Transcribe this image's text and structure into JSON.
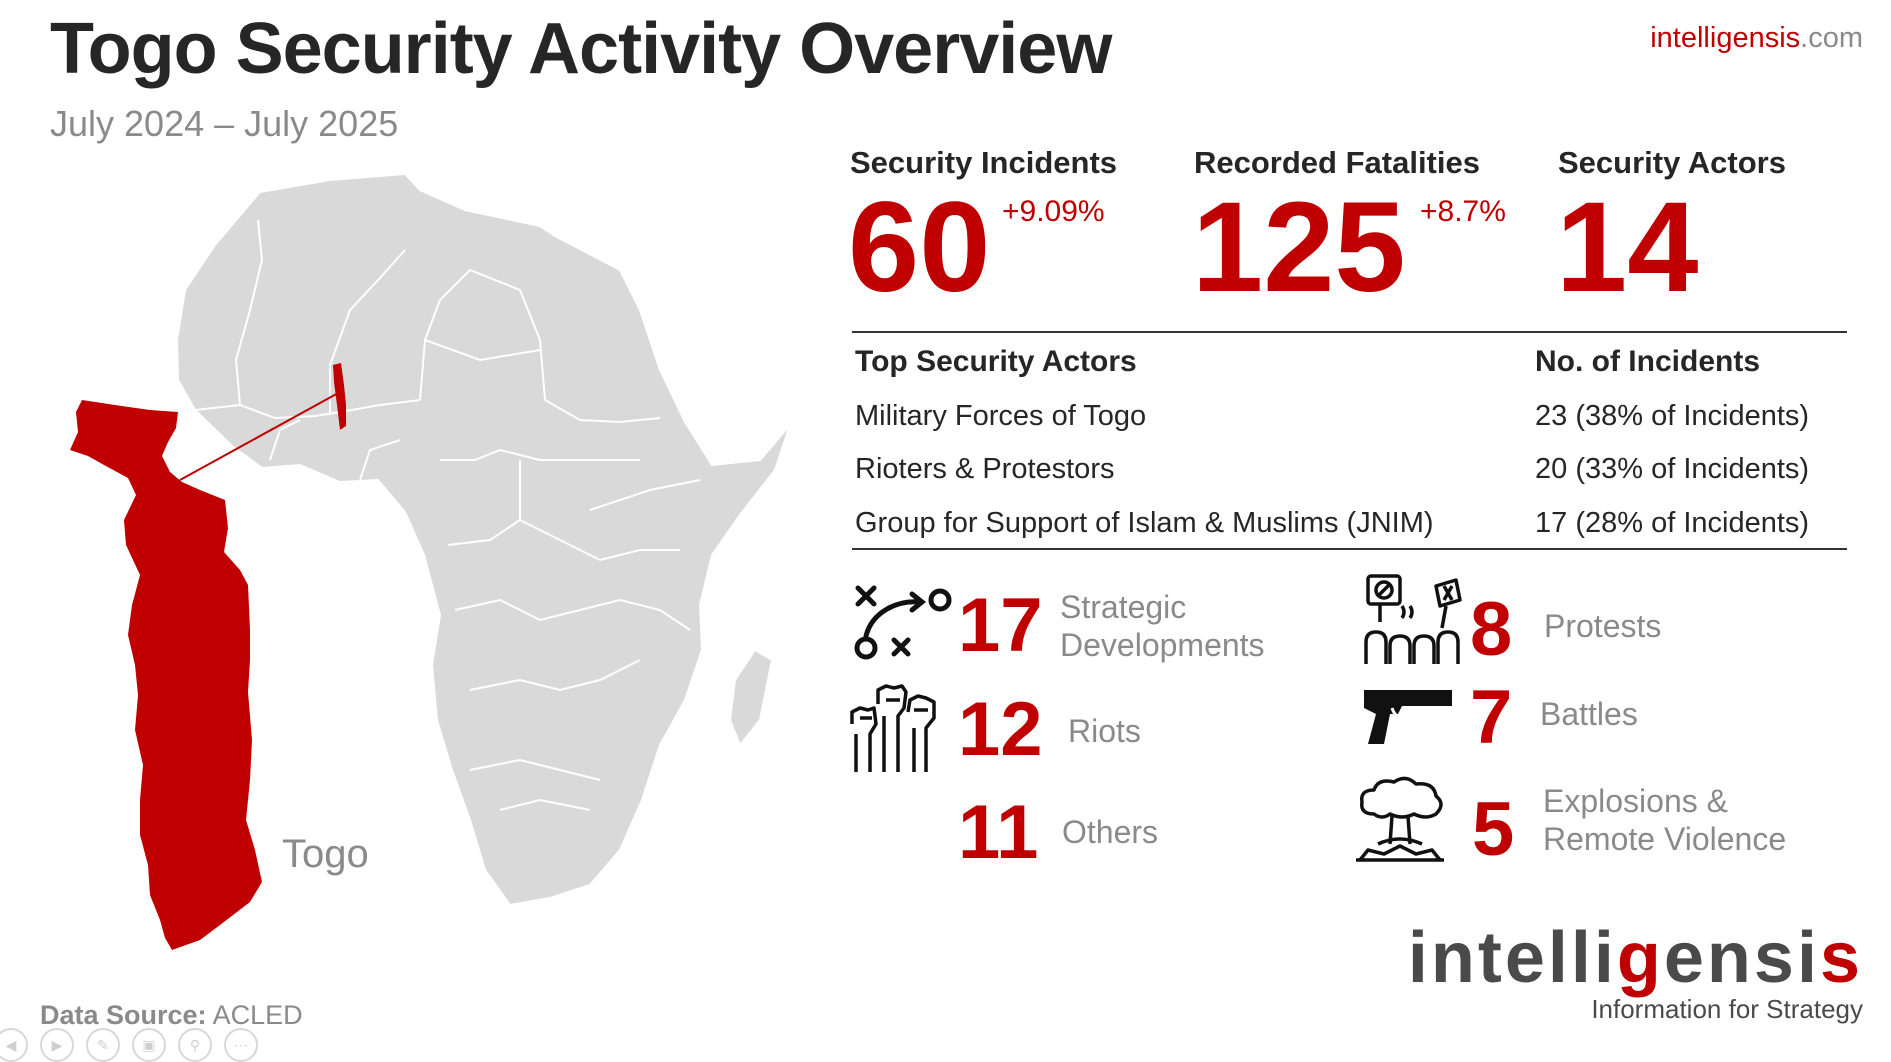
{
  "header": {
    "title": "Togo Security Activity Overview",
    "subtitle": "July 2024 – July 2025",
    "site_main": "intelligensis",
    "site_ext": ".com"
  },
  "map": {
    "country_label": "Togo",
    "highlight_color": "#c00000",
    "land_color": "#d9d9d9"
  },
  "kpis": [
    {
      "label": "Security Incidents",
      "value": "60",
      "change": "+9.09%"
    },
    {
      "label": "Recorded Fatalities",
      "value": "125",
      "change": "+8.7%"
    },
    {
      "label": "Security Actors",
      "value": "14",
      "change": ""
    }
  ],
  "actors_table": {
    "headers": [
      "Top Security Actors",
      "No. of Incidents"
    ],
    "rows": [
      {
        "actor": "Military Forces of Togo",
        "incidents": "23 (38% of Incidents)"
      },
      {
        "actor": "Rioters & Protestors",
        "incidents": "20 (33% of Incidents)"
      },
      {
        "actor": "Group for Support of Islam & Muslims (JNIM)",
        "incidents": "17 (28% of Incidents)"
      }
    ]
  },
  "categories": [
    {
      "icon": "strategy-icon",
      "value": "17",
      "label1": "Strategic",
      "label2": "Developments"
    },
    {
      "icon": "raised-fists-icon",
      "value": "12",
      "label1": "Riots",
      "label2": ""
    },
    {
      "icon": "",
      "value": "11",
      "label1": "Others",
      "label2": ""
    },
    {
      "icon": "protest-icon",
      "value": "8",
      "label1": "Protests",
      "label2": ""
    },
    {
      "icon": "pistol-icon",
      "value": "7",
      "label1": "Battles",
      "label2": ""
    },
    {
      "icon": "explosion-icon",
      "value": "5",
      "label1": "Explosions &",
      "label2": "Remote Violence"
    }
  ],
  "footer": {
    "source_label": "Data Source:",
    "source_value": "ACLED",
    "logo_a": "intelli",
    "logo_b": "g",
    "logo_c": "ensi",
    "logo_d": "s",
    "tagline": "Information for Strategy"
  },
  "nav_icons": [
    "back-icon",
    "play-icon",
    "pen-icon",
    "slides-icon",
    "zoom-icon",
    "more-icon"
  ]
}
